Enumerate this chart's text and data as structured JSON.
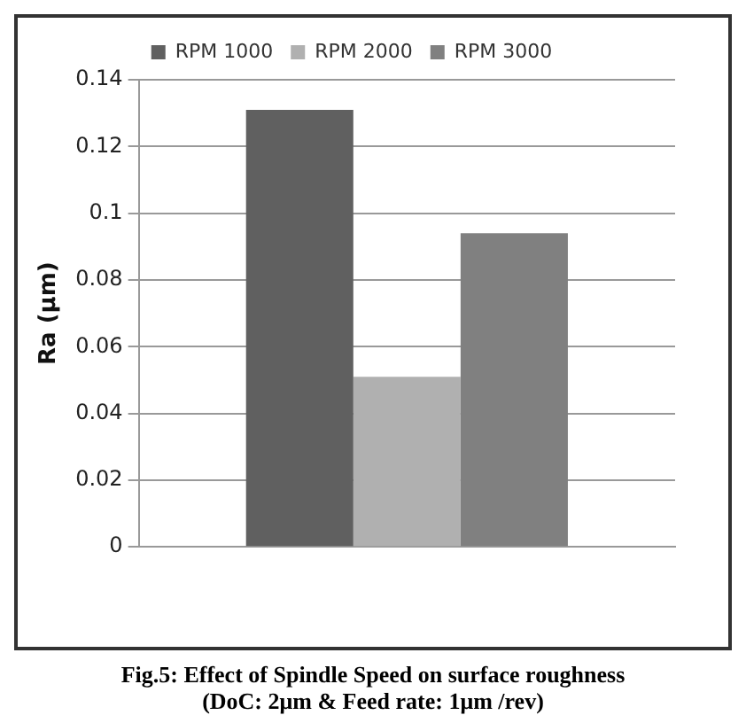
{
  "chart_data": {
    "type": "bar",
    "categories": [
      null
    ],
    "ylabel": "Ra (μm)",
    "series": [
      {
        "name": "RPM 1000",
        "color": "#606060",
        "values": [
          0.131
        ]
      },
      {
        "name": "RPM 2000",
        "color": "#b0b0b0",
        "values": [
          0.051
        ]
      },
      {
        "name": "RPM 3000",
        "color": "#808080",
        "values": [
          0.094
        ]
      }
    ],
    "ylim": [
      0,
      0.14
    ],
    "yticks": [
      0,
      0.02,
      0.04,
      0.06,
      0.08,
      0.1,
      0.12,
      0.14
    ],
    "grid": "y",
    "legend": "top",
    "annotations": [
      "Fig.5: Effect of Spindle Speed on surface roughness",
      "(DoC: 2μm & Feed rate: 1μm /rev)"
    ]
  }
}
